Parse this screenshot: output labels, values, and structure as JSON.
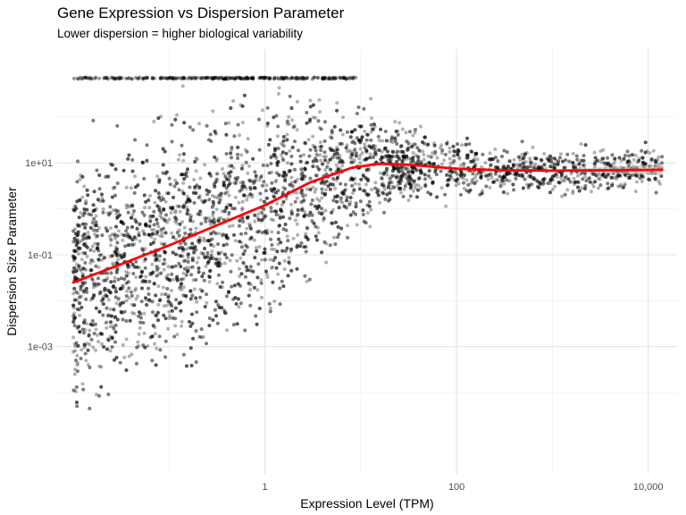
{
  "chart_data": {
    "type": "scatter",
    "title": "Gene Expression vs Dispersion Parameter",
    "subtitle": "Lower dispersion = higher biological variability",
    "xlabel": "Expression Level (TPM)",
    "ylabel": "Dispersion Size Parameter",
    "x_scale": "log10",
    "y_scale": "log10",
    "xlim": [
      0.0068,
      20000
    ],
    "ylim": [
      1.7e-06,
      3000
    ],
    "x_ticks": [
      {
        "value": 1,
        "label": "1"
      },
      {
        "value": 100,
        "label": "100"
      },
      {
        "value": 10000,
        "label": "10,000"
      }
    ],
    "y_ticks": [
      {
        "value": 0.001,
        "label": "1e-03"
      },
      {
        "value": 0.1,
        "label": "1e-01"
      },
      {
        "value": 10,
        "label": "1e+01"
      }
    ],
    "grid": true,
    "point_color": "#000000",
    "point_alpha": 0.3,
    "saturation_band": {
      "y": 700,
      "x_range": [
        0.01,
        9
      ]
    },
    "density_summary": [
      {
        "x": 0.01,
        "y_low": 0.0002,
        "y_high": 5
      },
      {
        "x": 0.1,
        "y_low": 0.0008,
        "y_high": 20
      },
      {
        "x": 1,
        "y_low": 0.005,
        "y_high": 40
      },
      {
        "x": 10,
        "y_low": 0.08,
        "y_high": 100
      },
      {
        "x": 30,
        "y_low": 0.5,
        "y_high": 30
      },
      {
        "x": 100,
        "y_low": 1.5,
        "y_high": 8
      },
      {
        "x": 1000,
        "y_low": 2,
        "y_high": 6
      },
      {
        "x": 14000,
        "y_low": 0.8,
        "y_high": 15
      }
    ],
    "trend": {
      "name": "smooth",
      "color": "#ff0000",
      "ci_color": "#bdbdbd",
      "points": [
        {
          "x": 0.01,
          "y": 0.025,
          "lo": 0.024,
          "hi": 0.026
        },
        {
          "x": 0.03,
          "y": 0.06,
          "lo": 0.058,
          "hi": 0.062
        },
        {
          "x": 0.1,
          "y": 0.16,
          "lo": 0.155,
          "hi": 0.165
        },
        {
          "x": 0.3,
          "y": 0.42,
          "lo": 0.41,
          "hi": 0.43
        },
        {
          "x": 1,
          "y": 1.2,
          "lo": 1.17,
          "hi": 1.23
        },
        {
          "x": 3,
          "y": 3.8,
          "lo": 3.7,
          "hi": 3.9
        },
        {
          "x": 8,
          "y": 7.8,
          "lo": 7.6,
          "hi": 8.0
        },
        {
          "x": 15,
          "y": 9.6,
          "lo": 9.4,
          "hi": 9.8
        },
        {
          "x": 30,
          "y": 9.2,
          "lo": 9.0,
          "hi": 9.4
        },
        {
          "x": 100,
          "y": 7.5,
          "lo": 7.3,
          "hi": 7.7
        },
        {
          "x": 300,
          "y": 6.9,
          "lo": 6.7,
          "hi": 7.1
        },
        {
          "x": 1000,
          "y": 6.8,
          "lo": 6.5,
          "hi": 7.1
        },
        {
          "x": 3000,
          "y": 6.9,
          "lo": 6.1,
          "hi": 7.8
        },
        {
          "x": 14000,
          "y": 7.1,
          "lo": 5.3,
          "hi": 9.4
        }
      ]
    }
  }
}
